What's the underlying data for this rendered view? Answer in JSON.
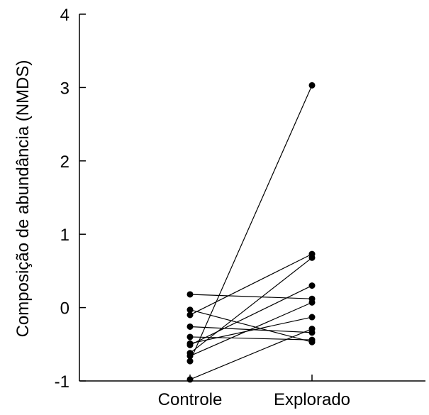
{
  "chart_data": {
    "type": "scatter",
    "title": "",
    "xlabel": "",
    "ylabel": "Composição de abundância (NMDS)",
    "categories": [
      "Controle",
      "Explorado"
    ],
    "ylim": [
      -1,
      4
    ],
    "yticks": [
      -1,
      0,
      1,
      2,
      3,
      4
    ],
    "ytick_labels": [
      "-1",
      "0",
      "1",
      "2",
      "3",
      "4"
    ],
    "grid": false,
    "legend": "none",
    "paired": true,
    "series": [
      {
        "values": [
          0.18,
          0.12
        ]
      },
      {
        "values": [
          -0.03,
          -0.47
        ]
      },
      {
        "values": [
          -0.1,
          0.73
        ]
      },
      {
        "values": [
          -0.26,
          -0.34
        ]
      },
      {
        "values": [
          -0.4,
          -0.44
        ]
      },
      {
        "values": [
          -0.49,
          -0.13
        ]
      },
      {
        "values": [
          -0.51,
          0.3
        ]
      },
      {
        "values": [
          -0.62,
          0.68
        ]
      },
      {
        "values": [
          -0.66,
          0.07
        ]
      },
      {
        "values": [
          -0.73,
          3.03
        ]
      },
      {
        "values": [
          -0.98,
          -0.29
        ]
      }
    ],
    "point_color": "#000000",
    "line_color": "#000000"
  }
}
